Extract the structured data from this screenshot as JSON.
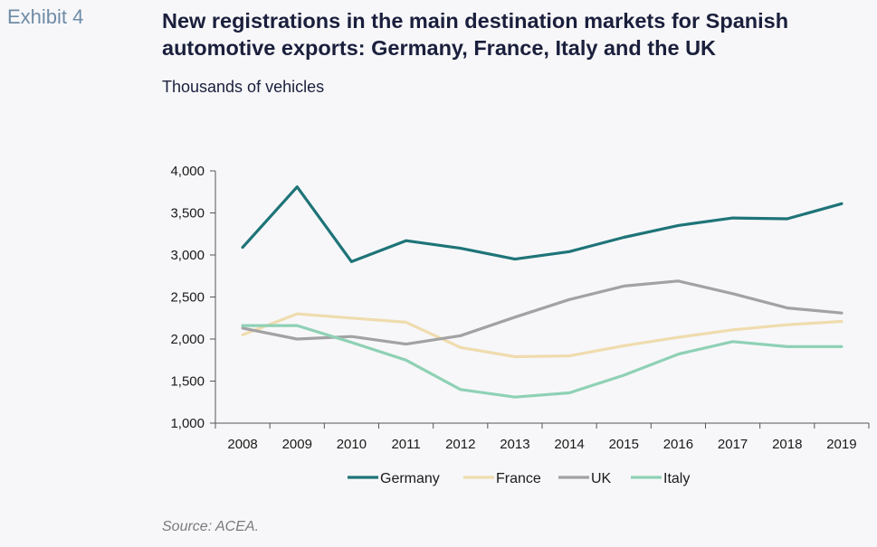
{
  "header": {
    "exhibit": "Exhibit 4",
    "title": "New registrations in the main destination markets for Spanish automotive exports: Germany, France, Italy and the UK",
    "subtitle": "Thousands of vehicles"
  },
  "footer": {
    "source": "Source: ACEA."
  },
  "chart_data": {
    "type": "line",
    "title": "New registrations in the main destination markets for Spanish automotive exports: Germany, France, Italy and the UK",
    "ylabel": "Thousands of vehicles",
    "xlabel": "",
    "categories": [
      "2008",
      "2009",
      "2010",
      "2011",
      "2012",
      "2013",
      "2014",
      "2015",
      "2016",
      "2017",
      "2018",
      "2019"
    ],
    "ylim": [
      1000,
      4000
    ],
    "yticks": [
      1000,
      1500,
      2000,
      2500,
      3000,
      3500,
      4000
    ],
    "ytick_labels": [
      "1,000",
      "1,500",
      "2,000",
      "2,500",
      "3,000",
      "3,500",
      "4,000"
    ],
    "grid": false,
    "legend_position": "bottom",
    "series": [
      {
        "name": "Germany",
        "color": "#1e7478",
        "values": [
          3090,
          3810,
          2920,
          3170,
          3080,
          2950,
          3040,
          3210,
          3350,
          3440,
          3430,
          3610
        ]
      },
      {
        "name": "France",
        "color": "#efdcae",
        "values": [
          2050,
          2300,
          2250,
          2200,
          1900,
          1790,
          1800,
          1920,
          2020,
          2110,
          2170,
          2210
        ]
      },
      {
        "name": "UK",
        "color": "#a2a2a4",
        "values": [
          2130,
          2000,
          2030,
          1940,
          2040,
          2260,
          2470,
          2630,
          2690,
          2540,
          2370,
          2310
        ]
      },
      {
        "name": "Italy",
        "color": "#8fd1b5",
        "values": [
          2160,
          2160,
          1960,
          1750,
          1400,
          1310,
          1360,
          1570,
          1820,
          1970,
          1910,
          1910
        ]
      }
    ]
  }
}
